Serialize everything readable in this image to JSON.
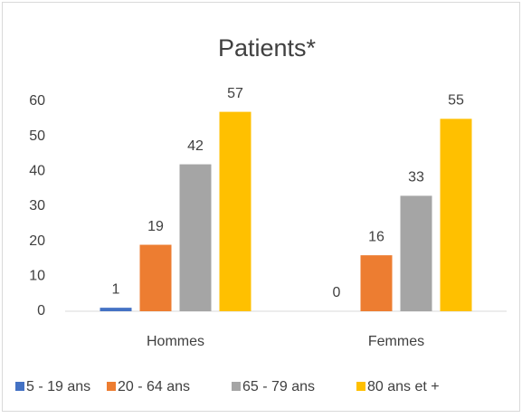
{
  "chart_data": {
    "type": "bar",
    "title": "Patients*",
    "categories": [
      "Hommes",
      "Femmes"
    ],
    "series": [
      {
        "name": "5 - 19 ans",
        "color": "#4472c4",
        "values": [
          1,
          0
        ]
      },
      {
        "name": "20 - 64 ans",
        "color": "#ed7d31",
        "values": [
          19,
          16
        ]
      },
      {
        "name": "65 - 79 ans",
        "color": "#a5a5a5",
        "values": [
          42,
          33
        ]
      },
      {
        "name": "80 ans et +",
        "color": "#ffc000",
        "values": [
          57,
          55
        ]
      }
    ],
    "ylim": [
      0,
      60
    ],
    "yticks": [
      0,
      10,
      20,
      30,
      40,
      50,
      60
    ],
    "grid": false,
    "legend": "bottom"
  }
}
